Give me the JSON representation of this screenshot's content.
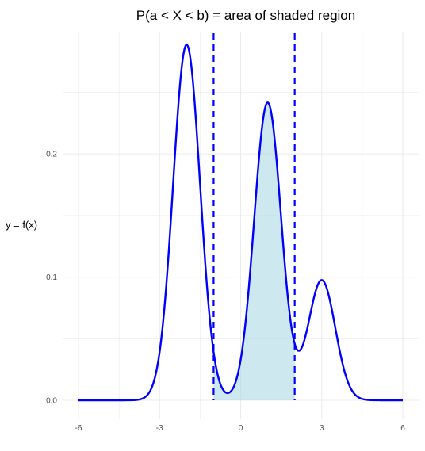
{
  "chart_data": {
    "type": "line",
    "title": "P(a < X < b) = area of shaded region",
    "xlabel": "",
    "ylabel": "y = f(x)",
    "xlim": [
      -6,
      6
    ],
    "ylim": [
      0,
      0.285
    ],
    "x_ticks": [
      -6,
      -3,
      0,
      3,
      6
    ],
    "x_tick_labels": [
      "-6",
      "-3",
      "0",
      "3",
      "6"
    ],
    "y_ticks": [
      0.0,
      0.1,
      0.2
    ],
    "y_tick_labels": [
      "0.0",
      "0.1",
      "0.2"
    ],
    "grid": true,
    "legend": "none",
    "mixture_components": [
      {
        "mean": -2,
        "sd": 0.5,
        "weight": 0.3617
      },
      {
        "mean": 1,
        "sd": 0.5,
        "weight": 0.3029
      },
      {
        "mean": 3,
        "sd": 0.5,
        "weight": 0.1222
      }
    ],
    "bounds": {
      "a": -1,
      "b": 2
    },
    "colors": {
      "curve": "#0000ff",
      "bounds": "#0000ff",
      "shade": "#add8e6",
      "grid": "#ebebeb"
    }
  }
}
